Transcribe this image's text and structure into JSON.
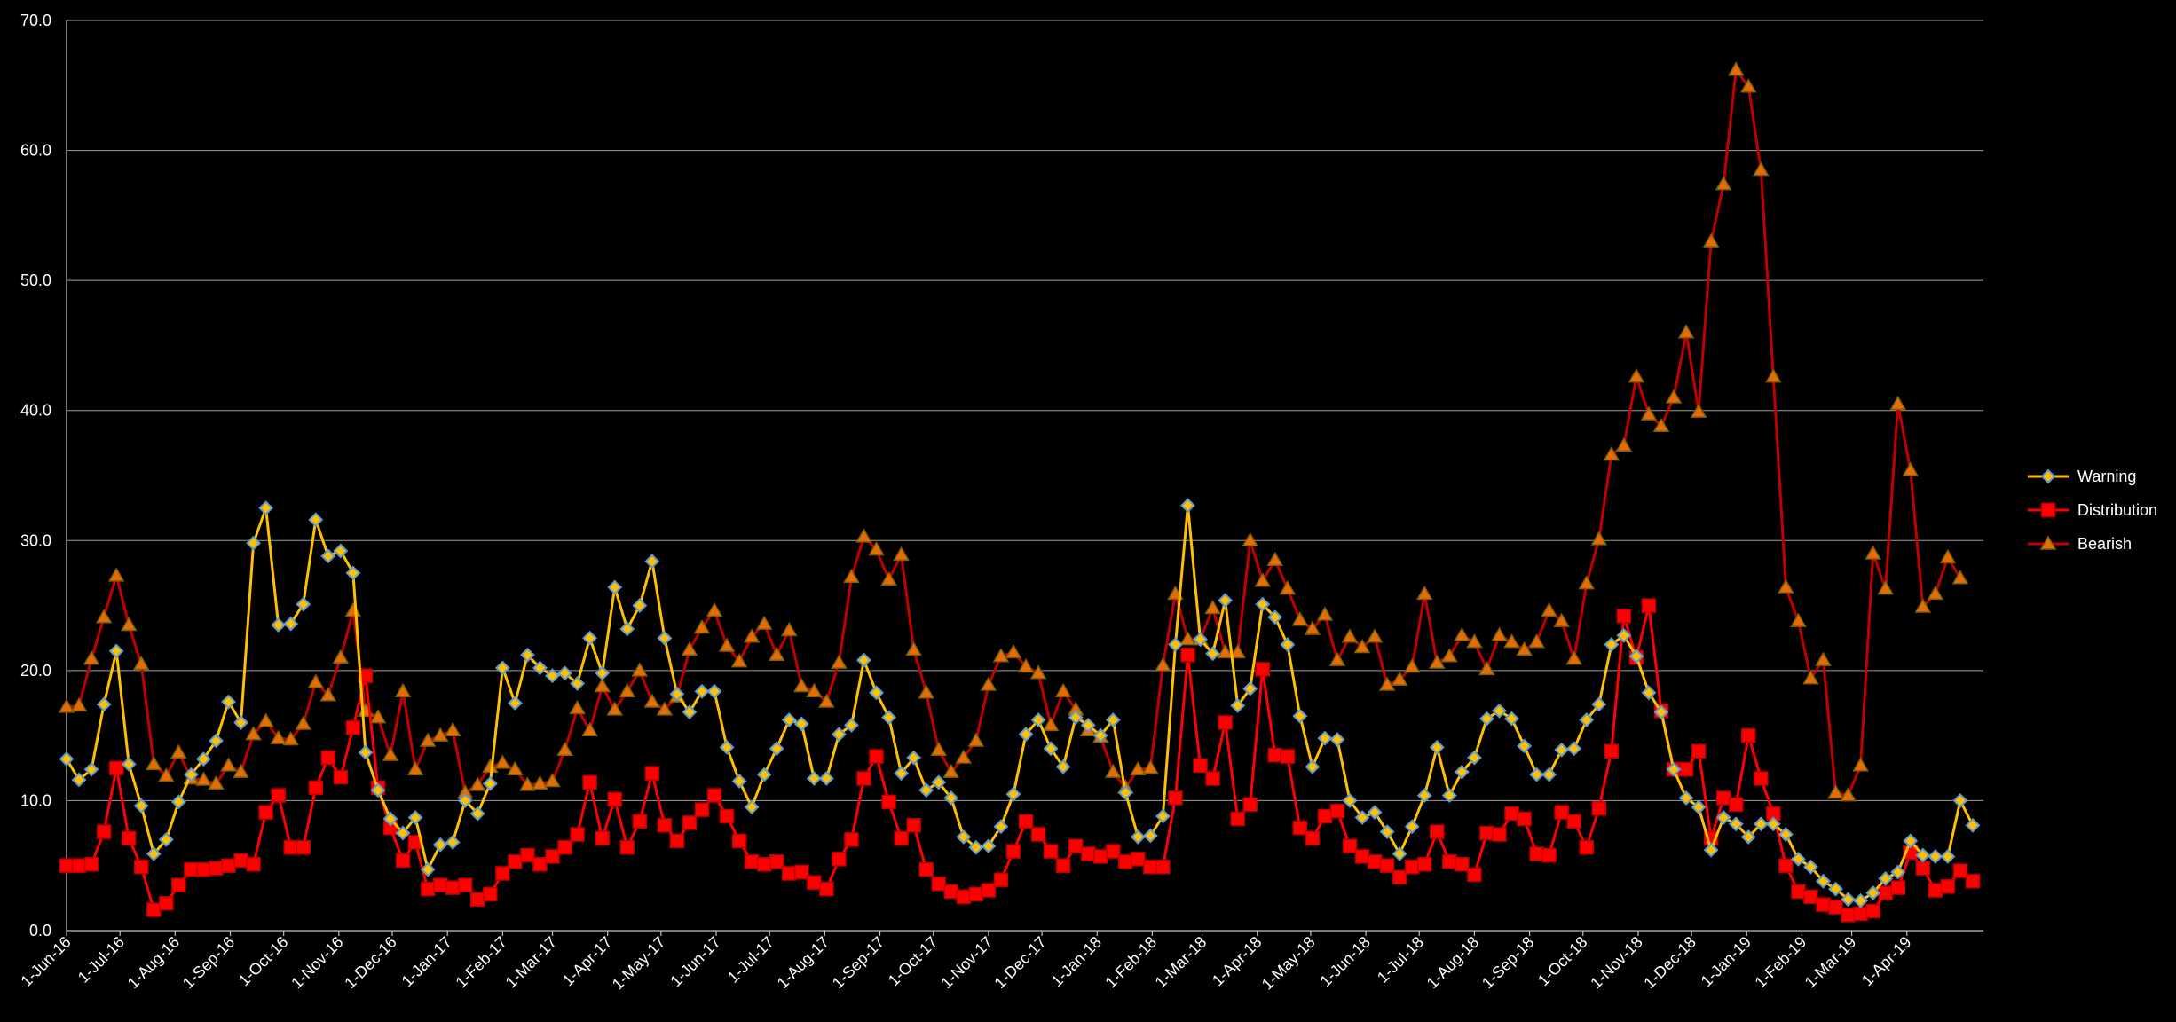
{
  "chart_data": {
    "type": "line",
    "title": "",
    "xlabel": "",
    "ylabel": "",
    "ylim": [
      0,
      70
    ],
    "yticks": [
      "0.0",
      "10.0",
      "20.0",
      "30.0",
      "40.0",
      "50.0",
      "60.0",
      "70.0"
    ],
    "grid": "horizontal",
    "legend_position": "right",
    "start_date": "2016-06-01",
    "x_step": "weekly",
    "x_ticks": [
      "1-Jun-16",
      "1-Jul-16",
      "1-Aug-16",
      "1-Sep-16",
      "1-Oct-16",
      "1-Nov-16",
      "1-Dec-16",
      "1-Jan-17",
      "1-Feb-17",
      "1-Mar-17",
      "1-Apr-17",
      "1-May-17",
      "1-Jun-17",
      "1-Jul-17",
      "1-Aug-17",
      "1-Sep-17",
      "1-Oct-17",
      "1-Nov-17",
      "1-Dec-17",
      "1-Jan-18",
      "1-Feb-18",
      "1-Mar-18",
      "1-Apr-18",
      "1-May-18",
      "1-Jun-18",
      "1-Jul-18",
      "1-Aug-18",
      "1-Sep-18",
      "1-Oct-18",
      "1-Nov-18",
      "1-Dec-18",
      "1-Jan-19",
      "1-Feb-19",
      "1-Mar-19",
      "1-Apr-19"
    ],
    "series": [
      {
        "name": "Warning",
        "color": "#FFC000",
        "marker": "diamond",
        "values": [
          13.2,
          11.6,
          12.4,
          17.4,
          21.5,
          12.8,
          9.6,
          5.9,
          7.0,
          9.9,
          12.0,
          13.2,
          14.6,
          17.6,
          16.0,
          29.8,
          32.5,
          23.5,
          23.6,
          25.1,
          31.6,
          28.8,
          29.2,
          27.5,
          13.7,
          10.8,
          8.6,
          7.5,
          8.7,
          4.7,
          6.6,
          6.8,
          10.0,
          9.0,
          11.3,
          20.2,
          17.5,
          21.2,
          20.2,
          19.6,
          19.8,
          19.0,
          22.5,
          19.8,
          26.4,
          23.2,
          25.0,
          28.4,
          22.5,
          18.2,
          16.8,
          18.4,
          18.4,
          14.1,
          11.5,
          9.5,
          12.0,
          14.0,
          16.2,
          15.9,
          11.7,
          11.7,
          15.1,
          15.8,
          20.8,
          18.3,
          16.4,
          12.1,
          13.3,
          10.8,
          11.4,
          10.2,
          7.2,
          6.4,
          6.5,
          8.0,
          10.5,
          15.1,
          16.2,
          14.0,
          12.6,
          16.4,
          15.8,
          15.0,
          16.2,
          10.6,
          7.2,
          7.3,
          8.8,
          22.0,
          32.7,
          22.4,
          21.3,
          25.4,
          17.3,
          18.6,
          25.1,
          24.1,
          22.0,
          16.5,
          12.6,
          14.8,
          14.7,
          10.0,
          8.7,
          9.1,
          7.6,
          5.9,
          8.0,
          10.4,
          14.1,
          10.4,
          12.2,
          13.3,
          16.3,
          16.9,
          16.3,
          14.2,
          12.0,
          12.0,
          13.9,
          14.0,
          16.2,
          17.4,
          22.0,
          22.7,
          21.1,
          18.3,
          16.8,
          12.4,
          10.2,
          9.5,
          6.2,
          8.7,
          8.2,
          7.2,
          8.2,
          8.2,
          7.4,
          5.5,
          4.9,
          3.8,
          3.2,
          2.4,
          2.3,
          2.9,
          4.0,
          4.5,
          6.9,
          5.8,
          5.7,
          5.7,
          10.0,
          8.1
        ]
      },
      {
        "name": "Distribution",
        "color": "#FF0000",
        "marker": "square",
        "values": [
          5.0,
          5.0,
          5.1,
          7.6,
          12.5,
          7.1,
          4.9,
          1.6,
          2.1,
          3.5,
          4.7,
          4.7,
          4.8,
          5.0,
          5.4,
          5.1,
          9.1,
          10.4,
          6.4,
          6.4,
          11.0,
          13.3,
          11.8,
          15.6,
          19.6,
          11.0,
          7.9,
          5.4,
          6.8,
          3.2,
          3.5,
          3.3,
          3.5,
          2.4,
          2.8,
          4.4,
          5.3,
          5.8,
          5.1,
          5.7,
          6.4,
          7.4,
          11.4,
          7.1,
          10.1,
          6.4,
          8.4,
          12.1,
          8.1,
          6.9,
          8.3,
          9.3,
          10.4,
          8.8,
          6.9,
          5.3,
          5.1,
          5.3,
          4.4,
          4.5,
          3.7,
          3.2,
          5.5,
          7.0,
          11.7,
          13.4,
          9.9,
          7.1,
          8.1,
          4.7,
          3.6,
          3.0,
          2.6,
          2.8,
          3.1,
          3.9,
          6.1,
          8.4,
          7.4,
          6.1,
          5.0,
          6.5,
          5.9,
          5.7,
          6.1,
          5.3,
          5.5,
          4.9,
          4.9,
          10.2,
          21.2,
          12.7,
          11.7,
          16.0,
          8.6,
          9.7,
          20.1,
          13.5,
          13.4,
          7.9,
          7.1,
          8.8,
          9.2,
          6.5,
          5.7,
          5.3,
          5.0,
          4.1,
          4.9,
          5.1,
          7.6,
          5.3,
          5.1,
          4.3,
          7.5,
          7.4,
          9.0,
          8.6,
          5.9,
          5.8,
          9.1,
          8.4,
          6.4,
          9.4,
          13.8,
          24.2,
          21.0,
          25.0,
          16.9,
          12.4,
          12.4,
          13.8,
          7.1,
          10.2,
          9.7,
          15.0,
          11.7,
          9.0,
          5.0,
          3.0,
          2.6,
          2.0,
          1.8,
          1.2,
          1.3,
          1.5,
          2.9,
          3.3,
          6.0,
          4.8,
          3.1,
          3.4,
          4.6,
          3.8
        ]
      },
      {
        "name": "Bearish",
        "color": "#C00000",
        "marker": "triangle",
        "values": [
          17.2,
          17.3,
          20.9,
          24.1,
          27.3,
          23.5,
          20.5,
          12.8,
          11.9,
          13.7,
          11.7,
          11.6,
          11.3,
          12.7,
          12.2,
          15.1,
          16.1,
          14.8,
          14.7,
          15.9,
          19.1,
          18.1,
          21.0,
          24.6,
          16.9,
          16.4,
          13.5,
          18.4,
          12.4,
          14.6,
          15.0,
          15.4,
          10.6,
          11.2,
          12.6,
          12.9,
          12.4,
          11.2,
          11.3,
          11.5,
          13.9,
          17.1,
          15.4,
          18.8,
          17.0,
          18.4,
          20.0,
          17.6,
          17.0,
          18.0,
          21.6,
          23.3,
          24.6,
          21.9,
          20.7,
          22.6,
          23.6,
          21.2,
          23.1,
          18.8,
          18.4,
          17.6,
          20.6,
          27.2,
          30.3,
          29.3,
          27.0,
          28.9,
          21.6,
          18.3,
          13.9,
          12.2,
          13.3,
          14.6,
          18.9,
          21.1,
          21.4,
          20.3,
          19.8,
          15.8,
          18.4,
          17.0,
          15.4,
          14.9,
          12.2,
          11.0,
          12.4,
          12.5,
          20.4,
          25.9,
          22.4,
          22.4,
          24.8,
          21.4,
          21.4,
          30.0,
          26.9,
          28.5,
          26.3,
          23.9,
          23.2,
          24.3,
          20.8,
          22.6,
          21.8,
          22.6,
          18.9,
          19.3,
          20.3,
          25.9,
          20.6,
          21.1,
          22.7,
          22.2,
          20.1,
          22.7,
          22.2,
          21.6,
          22.2,
          24.6,
          23.8,
          20.9,
          26.7,
          30.1,
          36.6,
          37.3,
          42.6,
          39.7,
          38.8,
          41.0,
          46.0,
          39.9,
          53.0,
          57.4,
          66.2,
          64.9,
          58.5,
          42.6,
          26.4,
          23.8,
          19.4,
          20.8,
          10.6,
          10.4,
          12.7,
          29.0,
          26.3,
          40.5,
          35.4,
          24.9,
          25.9,
          28.7,
          27.1
        ]
      }
    ]
  }
}
